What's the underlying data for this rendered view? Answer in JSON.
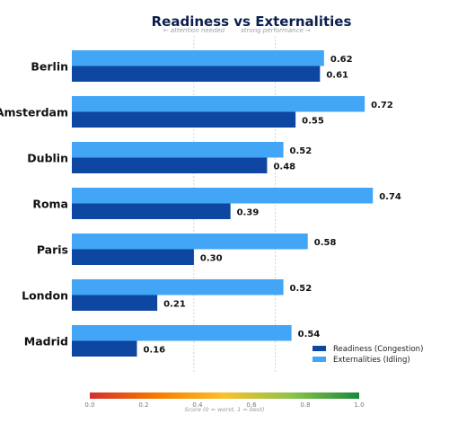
{
  "chart_data": {
    "type": "bar",
    "orientation": "horizontal",
    "title": "Readiness vs Externalities",
    "annotations": {
      "left_hint": "← attention needed",
      "right_hint": "strong performance →"
    },
    "categories": [
      "Berlin",
      "Amsterdam",
      "Dublin",
      "Roma",
      "Paris",
      "London",
      "Madrid"
    ],
    "series": [
      {
        "name": "Readiness (Congestion)",
        "color": "#0d47a1",
        "values": [
          0.61,
          0.55,
          0.48,
          0.39,
          0.3,
          0.21,
          0.16
        ]
      },
      {
        "name": "Externalities (Idling)",
        "color": "#42a5f5",
        "values": [
          0.62,
          0.72,
          0.52,
          0.74,
          0.58,
          0.52,
          0.54
        ]
      }
    ],
    "value_labels": {
      "readiness": [
        "0.61",
        "0.55",
        "0.48",
        "0.39",
        "0.30",
        "0.21",
        "0.16"
      ],
      "externalities": [
        "0.62",
        "0.72",
        "0.52",
        "0.74",
        "0.58",
        "0.52",
        "0.54"
      ]
    },
    "xlim": [
      0,
      0.75
    ],
    "reference_lines": [
      0.3,
      0.5
    ],
    "legend_position": "lower-right",
    "colorbar": {
      "label": "Score (0 = worst, 1 = best)",
      "ticks": [
        "0.0",
        "0.2",
        "0.4",
        "0.6",
        "0.8",
        "1.0"
      ],
      "tick_values": [
        0,
        0.2,
        0.4,
        0.6,
        0.8,
        1.0
      ],
      "colors": [
        "#d32f2f",
        "#f57c00",
        "#fbc02d",
        "#8bc34a",
        "#1b8a3a"
      ]
    }
  }
}
